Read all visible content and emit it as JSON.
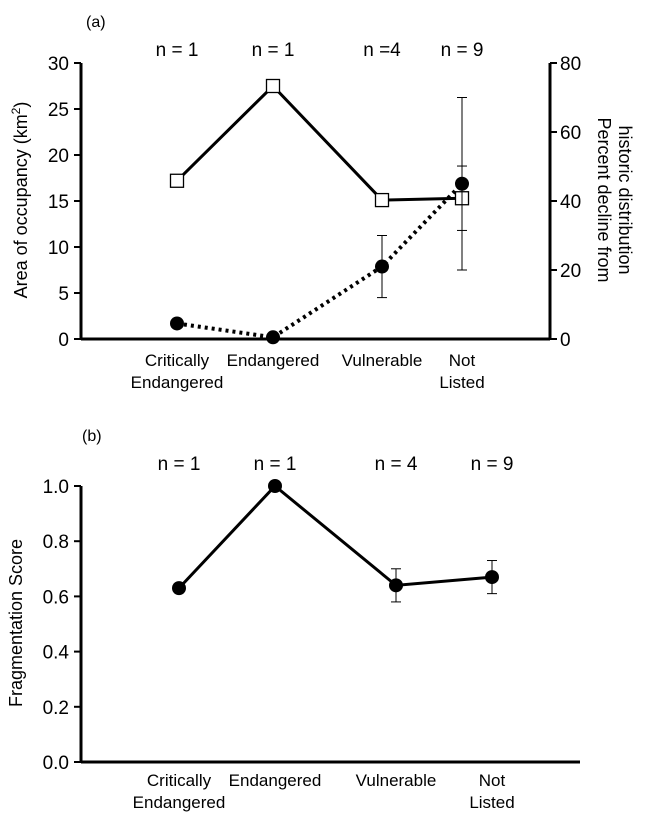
{
  "chart_data": [
    {
      "type": "line",
      "panel_label": "(a)",
      "categories": [
        "Critically\nEndangered",
        "Endangered",
        "Vulnerable",
        "Not\nListed"
      ],
      "sample_sizes": [
        "n = 1",
        "n = 1",
        "n =4",
        "n = 9"
      ],
      "ylabel": "Area of occupancy (km²)",
      "ylabel_prefix": "Area of occupancy (km",
      "ylabel_sup": "2",
      "ylabel_suffix": ")",
      "ylim": [
        0,
        30
      ],
      "yticks": [
        0,
        5,
        10,
        15,
        20,
        25,
        30
      ],
      "y2label_line1": "Percent decline from",
      "y2label_line2": "historic distribution",
      "y2lim": [
        0,
        80
      ],
      "y2ticks": [
        0,
        20,
        40,
        60,
        80
      ],
      "grid": false,
      "series": [
        {
          "axis": "left",
          "marker": "open-square",
          "line": "solid",
          "values": [
            17.2,
            27.5,
            15.1,
            15.3
          ],
          "error": [
            null,
            null,
            0.7,
            3.5
          ]
        },
        {
          "axis": "right",
          "marker": "filled-circle",
          "line": "dotted",
          "values": [
            4.5,
            0.5,
            21,
            45
          ],
          "error": [
            null,
            null,
            9,
            25
          ]
        }
      ]
    },
    {
      "type": "line",
      "panel_label": "(b)",
      "categories": [
        "Critically\nEndangered",
        "Endangered",
        "Vulnerable",
        "Not\nListed"
      ],
      "sample_sizes": [
        "n = 1",
        "n = 1",
        "n = 4",
        "n = 9"
      ],
      "ylabel": "Fragmentation Score",
      "ylim": [
        0,
        1
      ],
      "yticks": [
        "0.0",
        "0.2",
        "0.4",
        "0.6",
        "0.8",
        "1.0"
      ],
      "grid": false,
      "series": [
        {
          "axis": "left",
          "marker": "filled-circle",
          "line": "solid",
          "values": [
            0.63,
            1.0,
            0.64,
            0.67
          ],
          "error": [
            null,
            null,
            0.06,
            0.06
          ]
        }
      ]
    }
  ]
}
